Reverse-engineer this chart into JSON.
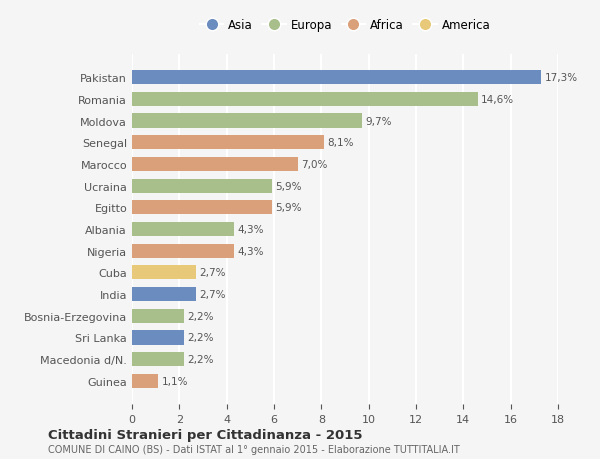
{
  "countries": [
    "Pakistan",
    "Romania",
    "Moldova",
    "Senegal",
    "Marocco",
    "Ucraina",
    "Egitto",
    "Albania",
    "Nigeria",
    "Cuba",
    "India",
    "Bosnia-Erzegovina",
    "Sri Lanka",
    "Macedonia d/N.",
    "Guinea"
  ],
  "values": [
    17.3,
    14.6,
    9.7,
    8.1,
    7.0,
    5.9,
    5.9,
    4.3,
    4.3,
    2.7,
    2.7,
    2.2,
    2.2,
    2.2,
    1.1
  ],
  "labels": [
    "17,3%",
    "14,6%",
    "9,7%",
    "8,1%",
    "7,0%",
    "5,9%",
    "5,9%",
    "4,3%",
    "4,3%",
    "2,7%",
    "2,7%",
    "2,2%",
    "2,2%",
    "2,2%",
    "1,1%"
  ],
  "colors": [
    "#6b8cbf",
    "#a8bf8c",
    "#a8bf8c",
    "#d9a07a",
    "#d9a07a",
    "#a8bf8c",
    "#d9a07a",
    "#a8bf8c",
    "#d9a07a",
    "#e8c97a",
    "#6b8cbf",
    "#a8bf8c",
    "#6b8cbf",
    "#a8bf8c",
    "#d9a07a"
  ],
  "continents": [
    "Asia",
    "Europa",
    "Africa",
    "America"
  ],
  "legend_colors": [
    "#6b8cbf",
    "#a8bf8c",
    "#d9a07a",
    "#e8c97a"
  ],
  "title": "Cittadini Stranieri per Cittadinanza - 2015",
  "subtitle": "COMUNE DI CAINO (BS) - Dati ISTAT al 1° gennaio 2015 - Elaborazione TUTTITALIA.IT",
  "xlim": [
    0,
    18
  ],
  "xticks": [
    0,
    2,
    4,
    6,
    8,
    10,
    12,
    14,
    16,
    18
  ],
  "bg_color": "#f5f5f5",
  "grid_color": "#ffffff"
}
